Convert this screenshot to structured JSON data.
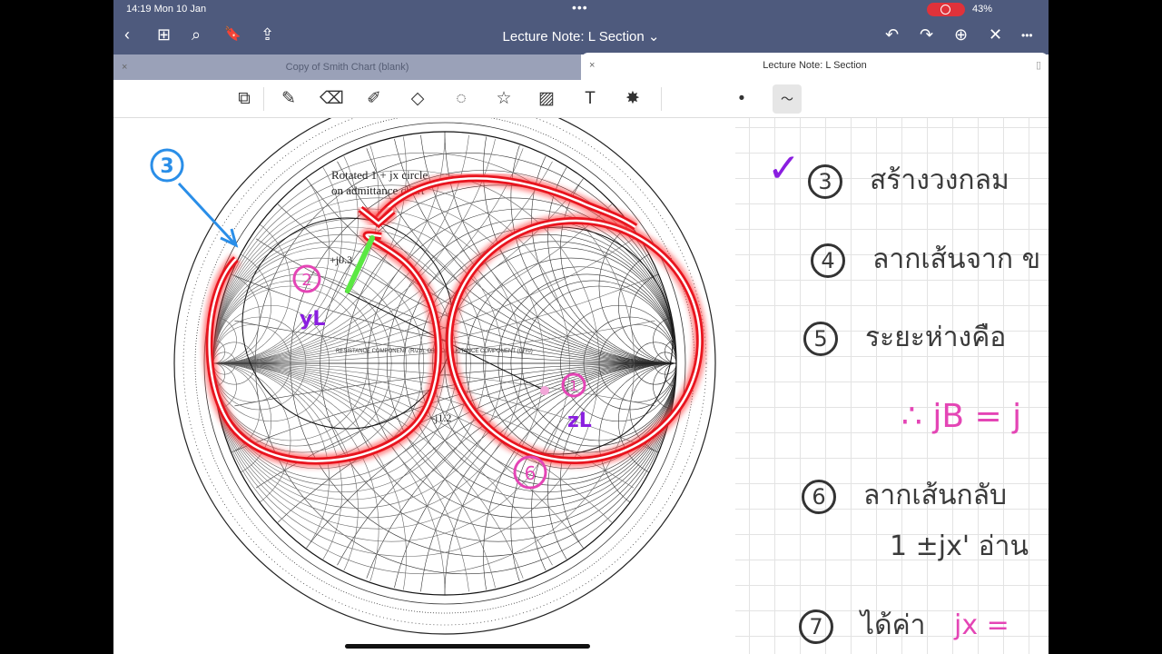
{
  "status": {
    "time": "14:19  Mon 10 Jan",
    "battery": "43%",
    "multitask": "•••"
  },
  "nav": {
    "back": "‹",
    "grid": "⊞",
    "search": "⌕",
    "bookmark": "🔖",
    "share": "⇪",
    "title": "Lecture Note: L Section ⌄",
    "undo": "↶",
    "redo": "↷",
    "add_page": "⊕",
    "close": "✕",
    "more": "•••"
  },
  "tabs": [
    {
      "label": "Copy of Smith Chart (blank)",
      "close": "×"
    },
    {
      "label": "Lecture Note: L Section",
      "close": "×"
    }
  ],
  "toolbar": {
    "tools": [
      "zoom-window",
      "pen",
      "eraser",
      "highlighter",
      "shapes",
      "lasso",
      "elements",
      "image",
      "text",
      "laser-pointer"
    ],
    "pen_dot": "•",
    "pen_stroke": "〜"
  },
  "chart_annotations": {
    "rotated_label_1": "Rotated 1 + jx circle",
    "rotated_label_2": "on admittance chart",
    "jx_pos": "+j0.3",
    "jx_neg": "-j1.2",
    "yl": "yL",
    "zl": "zL",
    "marker_1": "1",
    "marker_2": "2",
    "marker_3": "3",
    "marker_6": "6",
    "resistance_axis": "RESISTANCE COMPONENT (R/Zo), OR CONDUCTANCE COMPONENT (G/Yo)"
  },
  "notes": [
    {
      "num": "3",
      "text": "สร้างวงกลม",
      "check": "✓"
    },
    {
      "num": "4",
      "text": "ลากเส้นจาก ข"
    },
    {
      "num": "5",
      "text": "ระยะห่างคือ"
    },
    {
      "text": "∴  jB = j"
    },
    {
      "num": "6",
      "text": "ลากเส้นกลับ",
      "text2": "1 ±jx' อ่าน"
    },
    {
      "num": "7",
      "text": "ได้ค่า",
      "text_pink": "jx ="
    }
  ],
  "colors": {
    "topbar": "#4e5a7d",
    "highlight": "#e8141e",
    "pink": "#e445b5",
    "purple": "#8a1ee0",
    "blue": "#2a8ee8",
    "green": "#5be843"
  }
}
